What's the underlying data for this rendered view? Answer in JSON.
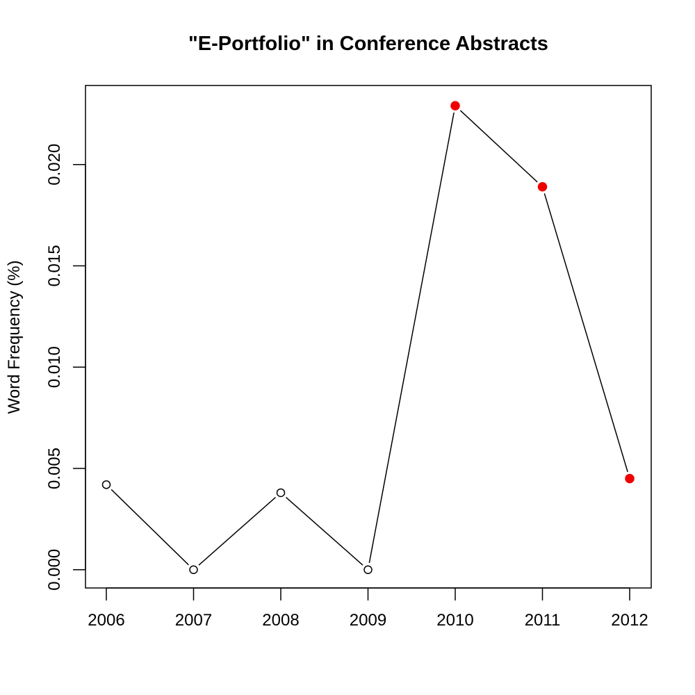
{
  "chart_data": {
    "type": "line",
    "title": "\"E-Portfolio\" in Conference Abstracts",
    "xlabel": "",
    "ylabel": "Word Frequency (%)",
    "categories": [
      "2006",
      "2007",
      "2008",
      "2009",
      "2010",
      "2011",
      "2012"
    ],
    "values": [
      0.0042,
      0.0,
      0.0038,
      0.0,
      0.0229,
      0.0189,
      0.0045
    ],
    "highlighted": [
      false,
      false,
      false,
      false,
      true,
      true,
      true
    ],
    "yticks": [
      "0.000",
      "0.005",
      "0.010",
      "0.015",
      "0.020"
    ],
    "ylim": [
      -0.0009,
      0.0239
    ],
    "grid": false,
    "legend": "none",
    "colors": {
      "line": "#000000",
      "open_marker_fill": "#ffffff",
      "highlight_marker": "#ee0000"
    }
  }
}
